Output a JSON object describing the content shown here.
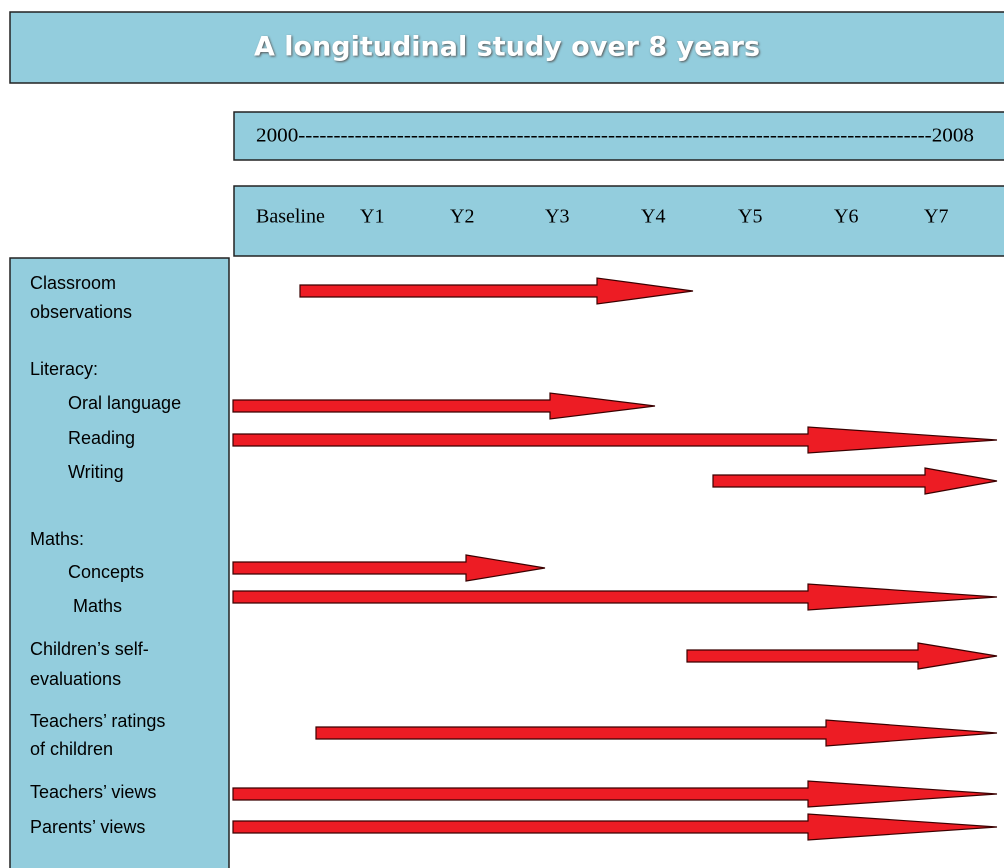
{
  "header": {
    "title": "A longitudinal study over 8 years"
  },
  "timeline": {
    "range": "2000------------------------------------------------------------------------------------------2008",
    "years": [
      "Baseline",
      "Y1",
      "Y2",
      "Y3",
      "Y4",
      "Y5",
      "Y6",
      "Y7"
    ]
  },
  "measures": [
    "Classroom",
    "observations",
    "Literacy:",
    "Oral language",
    "Reading",
    "Writing",
    "Maths:",
    "Concepts",
    "Maths",
    "Children’s self-",
    "evaluations",
    "Teachers’ ratings",
    "of children",
    "Teachers’ views",
    "Parents’ views"
  ]
}
